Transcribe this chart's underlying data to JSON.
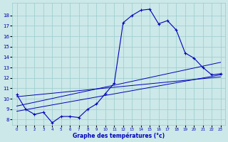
{
  "hours": [
    0,
    1,
    2,
    3,
    4,
    5,
    6,
    7,
    8,
    9,
    10,
    11,
    12,
    13,
    14,
    15,
    16,
    17,
    18,
    19,
    20,
    21,
    22,
    23
  ],
  "temps": [
    10.4,
    9.0,
    8.5,
    8.7,
    7.7,
    8.3,
    8.3,
    8.2,
    9.0,
    9.5,
    10.5,
    11.5,
    17.3,
    18.0,
    18.5,
    18.6,
    17.2,
    17.5,
    16.6,
    14.4,
    13.9,
    13.0,
    12.3,
    12.4
  ],
  "line1_x": [
    0,
    23
  ],
  "line1_y": [
    8.8,
    12.3
  ],
  "line2_x": [
    0,
    23
  ],
  "line2_y": [
    9.3,
    13.5
  ],
  "line3_x": [
    0,
    23
  ],
  "line3_y": [
    10.2,
    12.1
  ],
  "bg_color": "#cce8e8",
  "line_color": "#0000bb",
  "grid_color": "#99cccc",
  "xlabel": "Graphe des températures (°c)",
  "ylabel_ticks": [
    8,
    9,
    10,
    11,
    12,
    13,
    14,
    15,
    16,
    17,
    18
  ],
  "ylim": [
    7.5,
    19.2
  ],
  "xlim": [
    -0.5,
    23.5
  ]
}
